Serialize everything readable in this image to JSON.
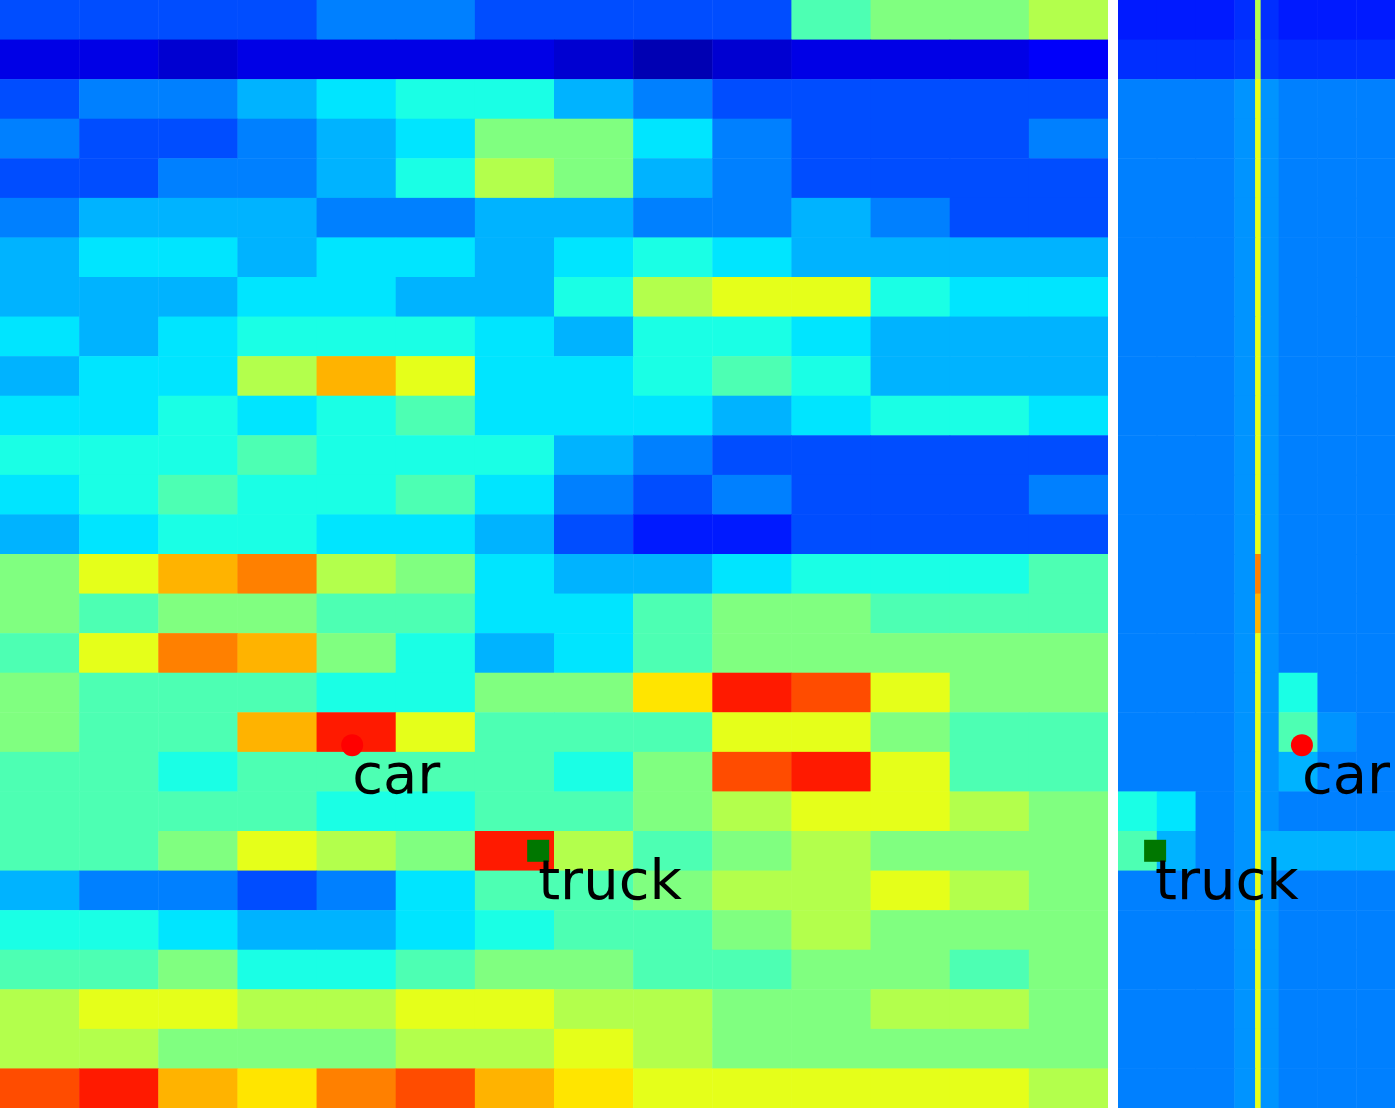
{
  "chart_data": [
    {
      "type": "heatmap",
      "tick_labels": false,
      "xlim": [
        0,
        14
      ],
      "ylim": [
        0,
        28
      ],
      "zlim": [
        0,
        1
      ],
      "z": [
        [
          0.2,
          0.2,
          0.2,
          0.2,
          0.25,
          0.25,
          0.2,
          0.2,
          0.2,
          0.2,
          0.45,
          0.5,
          0.5,
          0.55
        ],
        [
          0.1,
          0.1,
          0.08,
          0.1,
          0.1,
          0.1,
          0.1,
          0.08,
          0.05,
          0.08,
          0.1,
          0.1,
          0.1,
          0.12
        ],
        [
          0.2,
          0.25,
          0.25,
          0.3,
          0.35,
          0.4,
          0.4,
          0.3,
          0.25,
          0.2,
          0.2,
          0.2,
          0.2,
          0.2
        ],
        [
          0.25,
          0.2,
          0.2,
          0.25,
          0.3,
          0.35,
          0.5,
          0.5,
          0.35,
          0.25,
          0.2,
          0.2,
          0.2,
          0.25
        ],
        [
          0.2,
          0.2,
          0.25,
          0.25,
          0.3,
          0.4,
          0.55,
          0.5,
          0.3,
          0.25,
          0.2,
          0.2,
          0.2,
          0.2
        ],
        [
          0.25,
          0.3,
          0.3,
          0.3,
          0.25,
          0.25,
          0.3,
          0.3,
          0.25,
          0.25,
          0.3,
          0.25,
          0.2,
          0.2
        ],
        [
          0.3,
          0.35,
          0.35,
          0.3,
          0.35,
          0.35,
          0.3,
          0.35,
          0.4,
          0.35,
          0.3,
          0.3,
          0.3,
          0.3
        ],
        [
          0.3,
          0.3,
          0.3,
          0.35,
          0.35,
          0.3,
          0.3,
          0.4,
          0.55,
          0.6,
          0.6,
          0.4,
          0.35,
          0.35
        ],
        [
          0.35,
          0.3,
          0.35,
          0.4,
          0.4,
          0.4,
          0.35,
          0.3,
          0.4,
          0.4,
          0.35,
          0.3,
          0.3,
          0.3
        ],
        [
          0.3,
          0.35,
          0.35,
          0.55,
          0.7,
          0.6,
          0.35,
          0.35,
          0.4,
          0.45,
          0.4,
          0.3,
          0.3,
          0.3
        ],
        [
          0.35,
          0.35,
          0.4,
          0.35,
          0.4,
          0.45,
          0.35,
          0.35,
          0.35,
          0.3,
          0.35,
          0.4,
          0.4,
          0.35
        ],
        [
          0.4,
          0.4,
          0.4,
          0.45,
          0.4,
          0.4,
          0.4,
          0.3,
          0.25,
          0.2,
          0.2,
          0.2,
          0.2,
          0.2
        ],
        [
          0.35,
          0.4,
          0.45,
          0.4,
          0.4,
          0.45,
          0.35,
          0.25,
          0.2,
          0.25,
          0.2,
          0.2,
          0.2,
          0.25
        ],
        [
          0.3,
          0.35,
          0.4,
          0.4,
          0.35,
          0.35,
          0.3,
          0.2,
          0.15,
          0.15,
          0.2,
          0.2,
          0.2,
          0.2
        ],
        [
          0.5,
          0.6,
          0.7,
          0.75,
          0.55,
          0.5,
          0.35,
          0.3,
          0.3,
          0.35,
          0.4,
          0.4,
          0.4,
          0.45
        ],
        [
          0.5,
          0.45,
          0.5,
          0.5,
          0.45,
          0.45,
          0.35,
          0.35,
          0.45,
          0.5,
          0.5,
          0.45,
          0.45,
          0.45
        ],
        [
          0.45,
          0.6,
          0.75,
          0.7,
          0.5,
          0.4,
          0.3,
          0.35,
          0.45,
          0.5,
          0.5,
          0.5,
          0.5,
          0.5
        ],
        [
          0.5,
          0.45,
          0.45,
          0.45,
          0.4,
          0.4,
          0.5,
          0.5,
          0.65,
          0.85,
          0.8,
          0.6,
          0.5,
          0.5
        ],
        [
          0.5,
          0.45,
          0.45,
          0.7,
          0.85,
          0.6,
          0.45,
          0.45,
          0.45,
          0.6,
          0.6,
          0.5,
          0.45,
          0.45
        ],
        [
          0.45,
          0.45,
          0.4,
          0.45,
          0.45,
          0.45,
          0.45,
          0.4,
          0.5,
          0.8,
          0.85,
          0.6,
          0.45,
          0.45
        ],
        [
          0.45,
          0.45,
          0.45,
          0.45,
          0.4,
          0.4,
          0.45,
          0.45,
          0.5,
          0.55,
          0.6,
          0.6,
          0.55,
          0.5
        ],
        [
          0.45,
          0.45,
          0.5,
          0.6,
          0.55,
          0.5,
          0.85,
          0.55,
          0.45,
          0.5,
          0.55,
          0.5,
          0.5,
          0.5
        ],
        [
          0.3,
          0.25,
          0.25,
          0.2,
          0.25,
          0.35,
          0.45,
          0.45,
          0.5,
          0.55,
          0.55,
          0.6,
          0.55,
          0.5
        ],
        [
          0.4,
          0.4,
          0.35,
          0.3,
          0.3,
          0.35,
          0.4,
          0.45,
          0.45,
          0.5,
          0.55,
          0.5,
          0.5,
          0.5
        ],
        [
          0.45,
          0.45,
          0.5,
          0.4,
          0.4,
          0.45,
          0.5,
          0.5,
          0.45,
          0.45,
          0.5,
          0.5,
          0.45,
          0.5
        ],
        [
          0.55,
          0.6,
          0.6,
          0.55,
          0.55,
          0.6,
          0.6,
          0.55,
          0.55,
          0.5,
          0.5,
          0.55,
          0.55,
          0.5
        ],
        [
          0.55,
          0.55,
          0.5,
          0.5,
          0.5,
          0.55,
          0.55,
          0.6,
          0.55,
          0.5,
          0.5,
          0.5,
          0.5,
          0.5
        ],
        [
          0.8,
          0.85,
          0.7,
          0.65,
          0.75,
          0.8,
          0.7,
          0.65,
          0.6,
          0.6,
          0.6,
          0.6,
          0.6,
          0.55
        ]
      ],
      "annotations": [
        {
          "text": "car",
          "x": 4.45,
          "y": 18.83,
          "marker": "circle",
          "color": "#ff0000"
        },
        {
          "text": "truck",
          "x": 6.8,
          "y": 21.5,
          "marker": "square",
          "color": "#007700"
        }
      ]
    },
    {
      "type": "heatmap",
      "tick_labels": false,
      "xlim": [
        0,
        100
      ],
      "ylim": [
        0,
        28
      ],
      "zlim": [
        0,
        1
      ],
      "x_edges": [
        0,
        14,
        28,
        42,
        49.5,
        51.5,
        58,
        72,
        86,
        100
      ],
      "z": [
        [
          0.15,
          0.15,
          0.15,
          0.17,
          0.55,
          0.17,
          0.15,
          0.15,
          0.15
        ],
        [
          0.17,
          0.17,
          0.17,
          0.18,
          0.55,
          0.18,
          0.17,
          0.17,
          0.17
        ],
        [
          0.25,
          0.25,
          0.25,
          0.27,
          0.6,
          0.27,
          0.25,
          0.25,
          0.25
        ],
        [
          0.25,
          0.25,
          0.25,
          0.27,
          0.6,
          0.27,
          0.25,
          0.25,
          0.25
        ],
        [
          0.25,
          0.25,
          0.25,
          0.27,
          0.6,
          0.27,
          0.25,
          0.25,
          0.25
        ],
        [
          0.25,
          0.25,
          0.25,
          0.27,
          0.6,
          0.27,
          0.25,
          0.25,
          0.25
        ],
        [
          0.25,
          0.25,
          0.25,
          0.27,
          0.6,
          0.27,
          0.25,
          0.25,
          0.25
        ],
        [
          0.25,
          0.25,
          0.25,
          0.27,
          0.6,
          0.27,
          0.25,
          0.25,
          0.25
        ],
        [
          0.25,
          0.25,
          0.25,
          0.27,
          0.6,
          0.27,
          0.25,
          0.25,
          0.25
        ],
        [
          0.25,
          0.25,
          0.25,
          0.27,
          0.6,
          0.27,
          0.25,
          0.25,
          0.25
        ],
        [
          0.25,
          0.25,
          0.25,
          0.27,
          0.6,
          0.27,
          0.25,
          0.25,
          0.25
        ],
        [
          0.25,
          0.25,
          0.25,
          0.27,
          0.6,
          0.27,
          0.25,
          0.25,
          0.25
        ],
        [
          0.25,
          0.25,
          0.25,
          0.27,
          0.6,
          0.27,
          0.25,
          0.25,
          0.25
        ],
        [
          0.25,
          0.25,
          0.25,
          0.27,
          0.6,
          0.27,
          0.25,
          0.25,
          0.25
        ],
        [
          0.25,
          0.25,
          0.25,
          0.27,
          0.75,
          0.27,
          0.25,
          0.25,
          0.25
        ],
        [
          0.25,
          0.25,
          0.25,
          0.27,
          0.7,
          0.27,
          0.25,
          0.25,
          0.25
        ],
        [
          0.25,
          0.25,
          0.25,
          0.27,
          0.6,
          0.27,
          0.25,
          0.25,
          0.25
        ],
        [
          0.25,
          0.25,
          0.25,
          0.27,
          0.6,
          0.27,
          0.4,
          0.25,
          0.25
        ],
        [
          0.25,
          0.25,
          0.25,
          0.27,
          0.6,
          0.27,
          0.45,
          0.27,
          0.25
        ],
        [
          0.25,
          0.25,
          0.25,
          0.27,
          0.6,
          0.27,
          0.3,
          0.25,
          0.25
        ],
        [
          0.4,
          0.35,
          0.25,
          0.27,
          0.6,
          0.27,
          0.25,
          0.25,
          0.25
        ],
        [
          0.45,
          0.3,
          0.25,
          0.27,
          0.6,
          0.3,
          0.3,
          0.3,
          0.3
        ],
        [
          0.25,
          0.25,
          0.25,
          0.27,
          0.6,
          0.27,
          0.25,
          0.25,
          0.25
        ],
        [
          0.25,
          0.25,
          0.25,
          0.27,
          0.6,
          0.27,
          0.25,
          0.25,
          0.25
        ],
        [
          0.25,
          0.25,
          0.25,
          0.27,
          0.6,
          0.27,
          0.25,
          0.25,
          0.25
        ],
        [
          0.25,
          0.25,
          0.25,
          0.27,
          0.6,
          0.27,
          0.25,
          0.25,
          0.25
        ],
        [
          0.25,
          0.25,
          0.25,
          0.27,
          0.6,
          0.27,
          0.25,
          0.25,
          0.25
        ],
        [
          0.25,
          0.25,
          0.25,
          0.27,
          0.6,
          0.27,
          0.25,
          0.25,
          0.25
        ]
      ],
      "annotations": [
        {
          "text": "car",
          "x": 66.4,
          "y": 18.83,
          "marker": "circle",
          "color": "#ff0000"
        },
        {
          "text": "truck",
          "x": 13.4,
          "y": 21.5,
          "marker": "square",
          "color": "#007700"
        }
      ]
    }
  ]
}
